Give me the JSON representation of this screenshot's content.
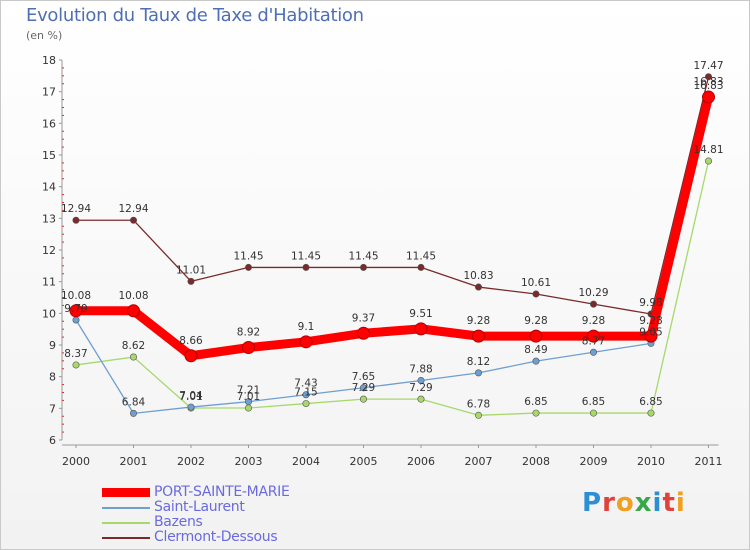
{
  "header": {
    "title": "Evolution du Taux de Taxe d'Habitation",
    "unit": "(en %)"
  },
  "brand": {
    "text": "Proxiti"
  },
  "chart_data": {
    "type": "line",
    "title": "Evolution du Taux de Taxe d'Habitation",
    "ylabel": "(en %)",
    "ylim": [
      6,
      18
    ],
    "grid": false,
    "legend_position": "bottom-left",
    "x": [
      "2000",
      "2001",
      "2002",
      "2003",
      "2004",
      "2005",
      "2006",
      "2007",
      "2008",
      "2009",
      "2010",
      "2011"
    ],
    "yticks": [
      "6",
      "7",
      "8",
      "9",
      "10",
      "11",
      "12",
      "13",
      "14",
      "15",
      "16",
      "17",
      "18"
    ],
    "series": [
      {
        "name": "PORT-SAINTE-MARIE",
        "color": "#ff0000",
        "values": [
          10.08,
          10.08,
          8.66,
          8.92,
          9.1,
          9.37,
          9.51,
          9.28,
          9.28,
          9.28,
          9.28,
          16.83
        ],
        "labels": [
          "10.08",
          "10.08",
          "8.66",
          "8.92",
          "9.1",
          "9.37",
          "9.51",
          "9.28",
          "9.28",
          "9.28",
          "9.28",
          "16.83"
        ]
      },
      {
        "name": "Saint-Laurent",
        "color": "#6f9fd0",
        "values": [
          9.79,
          6.84,
          7.04,
          7.21,
          7.43,
          7.65,
          7.88,
          8.12,
          8.49,
          8.77,
          9.05,
          16.83
        ],
        "labels": [
          "9.79",
          "6.84",
          "7.04",
          "7.21",
          "7.43",
          "7.65",
          "7.88",
          "8.12",
          "8.49",
          "8.77",
          "9.05",
          "16.83"
        ]
      },
      {
        "name": "Bazens",
        "color": "#a6d96a",
        "values": [
          8.37,
          8.62,
          7.01,
          7.01,
          7.15,
          7.29,
          7.29,
          6.78,
          6.85,
          6.85,
          6.85,
          14.81
        ],
        "labels": [
          "8.37",
          "8.62",
          "7.01",
          "7.01",
          "7.15",
          "7.29",
          "7.29",
          "6.78",
          "6.85",
          "6.85",
          "6.85",
          "14.81"
        ]
      },
      {
        "name": "Clermont-Dessous",
        "color": "#7a2a2a",
        "values": [
          12.94,
          12.94,
          11.01,
          11.45,
          11.45,
          11.45,
          11.45,
          10.83,
          10.61,
          10.29,
          9.98,
          17.47
        ],
        "labels": [
          "12.94",
          "12.94",
          "11.01",
          "11.45",
          "11.45",
          "11.45",
          "11.45",
          "10.83",
          "10.61",
          "10.29",
          "9.98",
          "17.47"
        ]
      }
    ]
  }
}
